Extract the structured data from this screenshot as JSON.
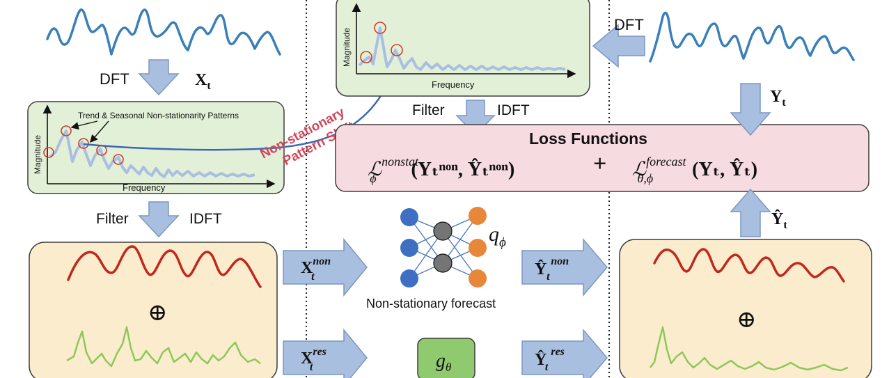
{
  "left": {
    "dft": "DFT",
    "xt_main": "X",
    "xt_sub": "t",
    "spectrum_annotation": "Trend & Seasonal Non-stationarity Patterns",
    "magnitude": "Magnitude",
    "frequency": "Frequency",
    "filter": "Filter",
    "idft": "IDFT",
    "oplus": "⊕"
  },
  "shift": {
    "line1": "Non-stationary",
    "line2": "Pattern Shift"
  },
  "middle": {
    "magnitude": "Magnitude",
    "frequency": "Frequency",
    "filter": "Filter",
    "idft": "IDFT",
    "loss_title": "Loss Functions",
    "loss_nonstat_L": "ℒ",
    "loss_nonstat_sup": "nonstat",
    "loss_nonstat_sub": "ϕ",
    "loss_nonstat_args": "(Yₜⁿᵒⁿ, Ŷₜⁿᵒⁿ)",
    "plus": "+",
    "loss_forecast_L": "ℒ",
    "loss_forecast_sup": "forecast",
    "loss_forecast_sub": "θ,ϕ",
    "loss_forecast_args": "(Yₜ, Ŷₜ)",
    "q_phi": "q",
    "q_phi_sub": "ϕ",
    "nonstat_forecast": "Non-stationary forecast",
    "g_theta": "g",
    "g_theta_sub": "θ",
    "x_non": "X",
    "x_non_sup": "non",
    "x_non_sub": "t",
    "x_res": "X",
    "x_res_sup": "res",
    "x_res_sub": "t",
    "y_non": "Ŷ",
    "y_non_sup": "non",
    "y_non_sub": "t",
    "y_res": "Ŷ",
    "y_res_sup": "res",
    "y_res_sub": "t"
  },
  "right": {
    "dft": "DFT",
    "yt_main": "Y",
    "yt_sub": "t",
    "yhat_main": "Ŷ",
    "yhat_sub": "t",
    "oplus": "⊕"
  },
  "colors": {
    "signal_blue": "#3a7fb8",
    "trend_red": "#c0281c",
    "residual_green": "#8cc858",
    "arrow_fill": "#a9bfe0",
    "arrow_stroke": "#7c96c3",
    "spectrum_box": "#e3f0d8",
    "loss_box": "#f6dbe0",
    "component_box": "#fbeccd",
    "shift_text": "#d0485a"
  }
}
